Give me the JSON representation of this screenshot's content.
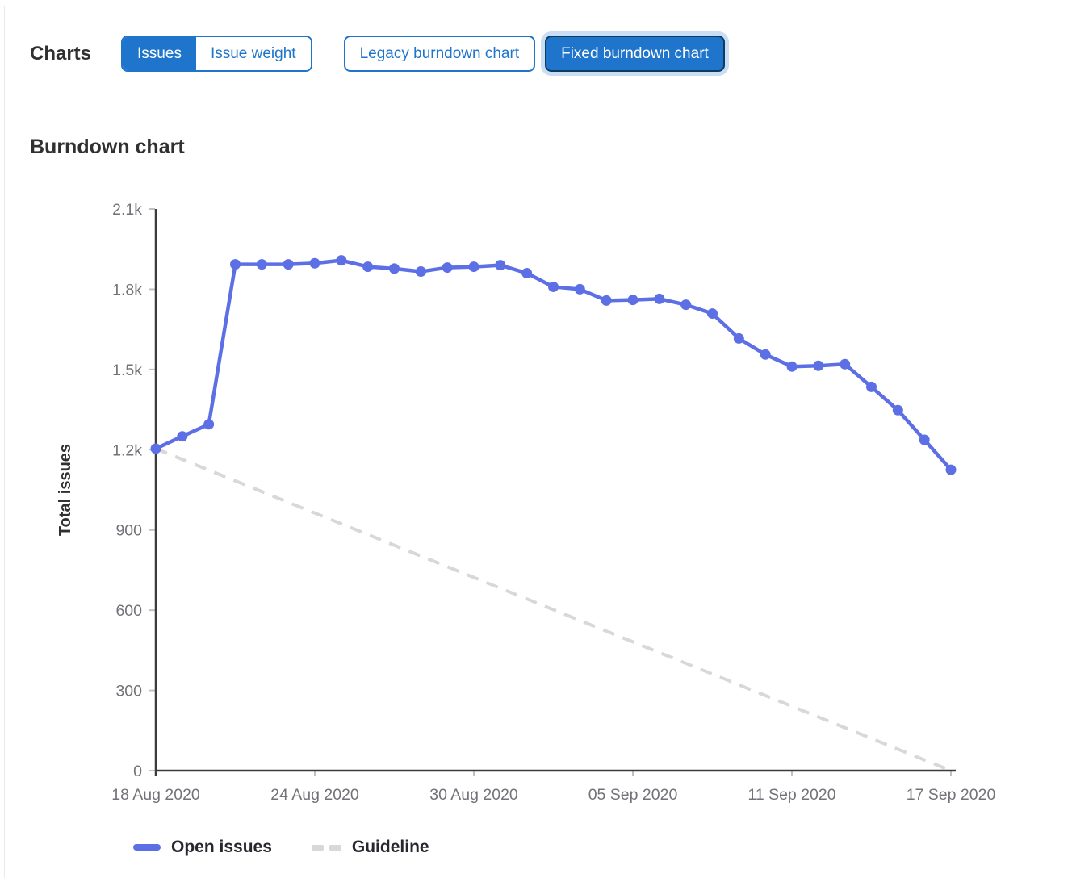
{
  "header": {
    "charts_label": "Charts",
    "issues_toggle": {
      "items": [
        {
          "label": "Issues",
          "active": true
        },
        {
          "label": "Issue weight",
          "active": false
        }
      ]
    },
    "type_toggle": {
      "items": [
        {
          "label": "Legacy burndown chart",
          "active": false
        },
        {
          "label": "Fixed burndown chart",
          "active": true
        }
      ]
    }
  },
  "section": {
    "title": "Burndown chart"
  },
  "colors": {
    "accent_blue": "#1f75cb",
    "selected_border": "#0d3c61",
    "focus_ring": "#c9def4",
    "line_blue": "#5c6fe4",
    "guideline_gray": "#d8d8d8",
    "axis_line": "#3c3c3c",
    "tick_mark": "#c1c1c1",
    "tick_text": "#737278",
    "heading_text": "#303030"
  },
  "chart_data": {
    "type": "line",
    "title": "Burndown chart",
    "xlabel": "",
    "ylabel": "Total issues",
    "ylim": [
      0,
      2100
    ],
    "grid": false,
    "legend_position": "bottom-left",
    "y_ticks": {
      "values": [
        0,
        300,
        600,
        900,
        1200,
        1500,
        1800,
        2100
      ],
      "labels": [
        "0",
        "300",
        "600",
        "900",
        "1.2k",
        "1.5k",
        "1.8k",
        "2.1k"
      ]
    },
    "x": [
      "2020-08-18",
      "2020-08-19",
      "2020-08-20",
      "2020-08-21",
      "2020-08-22",
      "2020-08-23",
      "2020-08-24",
      "2020-08-25",
      "2020-08-26",
      "2020-08-27",
      "2020-08-28",
      "2020-08-29",
      "2020-08-30",
      "2020-08-31",
      "2020-09-01",
      "2020-09-02",
      "2020-09-03",
      "2020-09-04",
      "2020-09-05",
      "2020-09-06",
      "2020-09-07",
      "2020-09-08",
      "2020-09-09",
      "2020-09-10",
      "2020-09-11",
      "2020-09-12",
      "2020-09-13",
      "2020-09-14",
      "2020-09-15",
      "2020-09-16",
      "2020-09-17"
    ],
    "x_tick_positions": [
      0,
      6,
      12,
      18,
      24,
      30
    ],
    "x_tick_labels": [
      "18 Aug 2020",
      "24 Aug 2020",
      "30 Aug 2020",
      "05 Sep 2020",
      "11 Sep 2020",
      "17 Sep 2020"
    ],
    "series": [
      {
        "name": "Open issues",
        "type": "line",
        "style": "solid",
        "marker": "circle",
        "color": "#5c6fe4",
        "values": [
          1204,
          1250,
          1295,
          1893,
          1893,
          1893,
          1897,
          1908,
          1884,
          1877,
          1866,
          1881,
          1884,
          1890,
          1860,
          1809,
          1800,
          1758,
          1760,
          1764,
          1742,
          1709,
          1616,
          1556,
          1511,
          1514,
          1520,
          1435,
          1348,
          1237,
          1125
        ]
      },
      {
        "name": "Guideline",
        "type": "line",
        "style": "dashed",
        "marker": "none",
        "color": "#d8d8d8",
        "endpoints_only": true,
        "values": [
          1204,
          0
        ]
      }
    ]
  }
}
